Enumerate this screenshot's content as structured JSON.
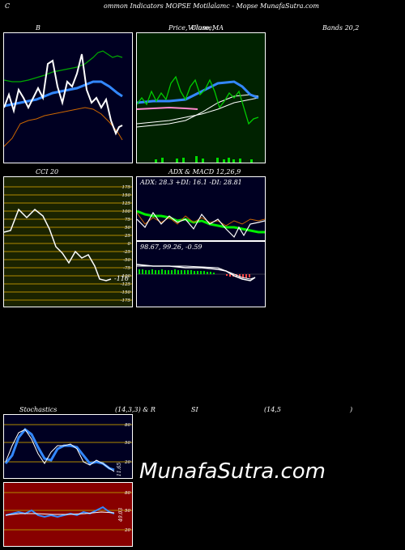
{
  "header": {
    "c": "C",
    "title": "ommon Indicators MOPSE Motilalamc - Mopse  MunafaSutra.com"
  },
  "panels": {
    "bbands": {
      "label": "B"
    },
    "price": {
      "label_1": "Price,",
      "label_2": "Volume,",
      "label_3": "Close,",
      "label_4": "MA"
    },
    "bands": {
      "label": "Bands 20,2"
    },
    "cci": {
      "label": "CCI 20",
      "value": "-116",
      "ticks": [
        "175",
        "150",
        "125",
        "100",
        "75",
        "50",
        "25",
        "0",
        "-25",
        "-50",
        "-75",
        "-100",
        "-125",
        "-150",
        "-175"
      ]
    },
    "adx": {
      "label_1": "ADX",
      "label_2": "& MACD 12,26,9",
      "readout": "ADX: 28.3  +DI: 16.1  -DI: 28.81"
    },
    "macd": {
      "readout": "98.67,  99.26,  -0.59"
    },
    "stochastics": {
      "label": "Stochastics",
      "params": "(14,3,3) & R",
      "si": "SI",
      "params2": "(14,5",
      "close_paren": ")",
      "ticks": [
        "80",
        "50",
        "20"
      ],
      "value": "11.65"
    },
    "rsi": {
      "ticks": [
        "80",
        "50",
        "20"
      ],
      "value": "49.03"
    }
  },
  "brand": "MunafaSutra.com",
  "colors": {
    "panel_bg_dark": "#000022",
    "price_bg": "#002200",
    "cci_bg": "#1a2300",
    "rsi_bg": "#880000",
    "blue_line": "#3388ff",
    "green_line": "#00cc00",
    "orange_line": "#cc6600",
    "volume_bar": "#00dd00"
  }
}
